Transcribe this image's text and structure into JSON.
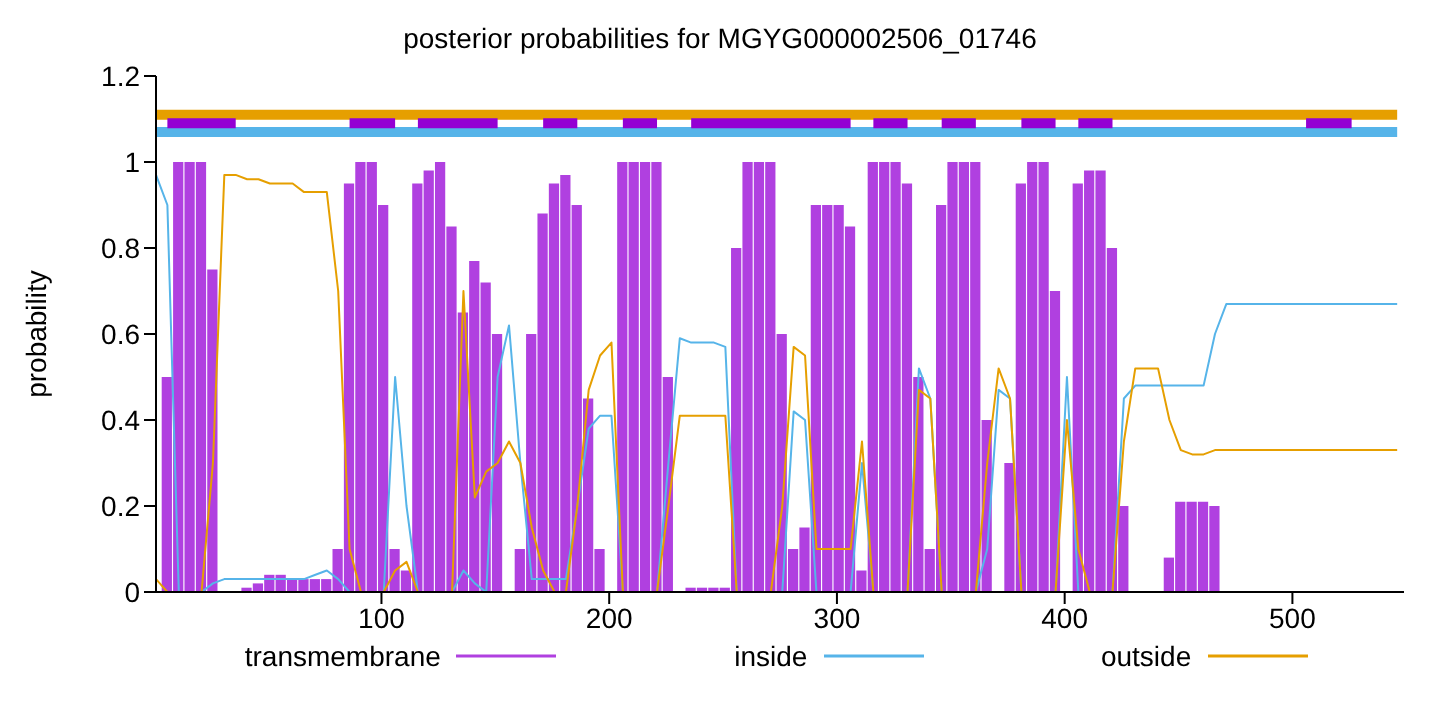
{
  "chart_data": {
    "type": "bar",
    "title": "posterior probabilities for MGYG000002506_01746",
    "ylabel": "probability",
    "xlim": [
      1,
      549
    ],
    "xticks": [
      100,
      200,
      300,
      400,
      500
    ],
    "ylim": [
      0,
      1.2
    ],
    "yticks": [
      0,
      0.2,
      0.4,
      0.6,
      0.8,
      1,
      1.2
    ],
    "grid": false,
    "legend": "bottom",
    "x": [
      1,
      6,
      11,
      16,
      21,
      26,
      31,
      36,
      41,
      46,
      51,
      56,
      61,
      66,
      71,
      76,
      81,
      86,
      91,
      96,
      101,
      106,
      111,
      116,
      121,
      126,
      131,
      136,
      141,
      146,
      151,
      156,
      161,
      166,
      171,
      176,
      181,
      186,
      191,
      196,
      201,
      206,
      211,
      216,
      221,
      226,
      231,
      236,
      241,
      246,
      251,
      256,
      261,
      266,
      271,
      276,
      281,
      286,
      291,
      296,
      301,
      306,
      311,
      316,
      321,
      326,
      331,
      336,
      341,
      346,
      351,
      356,
      361,
      366,
      371,
      376,
      381,
      386,
      391,
      396,
      401,
      406,
      411,
      416,
      421,
      426,
      431,
      436,
      441,
      446,
      451,
      456,
      461,
      466,
      471,
      476,
      481,
      486,
      491,
      496,
      501,
      506,
      511,
      516,
      521,
      526,
      531,
      536,
      541,
      546
    ],
    "series": [
      {
        "name": "transmembrane",
        "color": "#b040e0",
        "values": [
          0,
          0.5,
          1,
          1,
          1,
          0.75,
          0,
          0,
          0.01,
          0.02,
          0.04,
          0.04,
          0.03,
          0.03,
          0.03,
          0.03,
          0.1,
          0.95,
          1,
          1,
          0.9,
          0.1,
          0.05,
          0.95,
          0.98,
          1,
          0.85,
          0.65,
          0.77,
          0.72,
          0.6,
          0,
          0.1,
          0.6,
          0.88,
          0.95,
          0.97,
          0.9,
          0.45,
          0.1,
          0,
          1,
          1,
          1,
          1,
          0.5,
          0,
          0.01,
          0.01,
          0.01,
          0.01,
          0.8,
          1,
          1,
          1,
          0.6,
          0.1,
          0.15,
          0.9,
          0.9,
          0.9,
          0.85,
          0.05,
          1,
          1,
          1,
          0.95,
          0.5,
          0.1,
          0.9,
          1,
          1,
          1,
          0.4,
          0,
          0.3,
          0.95,
          1,
          1,
          0.7,
          0,
          0.95,
          0.98,
          0.98,
          0.8,
          0.2,
          0,
          0,
          0,
          0.08,
          0.21,
          0.21,
          0.21,
          0.2,
          0,
          0,
          0,
          0,
          0,
          0,
          0,
          0,
          0,
          0,
          0,
          0,
          0,
          0,
          0,
          0
        ]
      },
      {
        "name": "inside",
        "type": "line",
        "color": "#56b4e9",
        "values": [
          0.97,
          0.9,
          0,
          0,
          0,
          0.02,
          0.03,
          0.03,
          0.03,
          0.03,
          0.03,
          0.03,
          0.03,
          0.03,
          0.04,
          0.05,
          0.03,
          0,
          0,
          0,
          0,
          0.5,
          0.2,
          0,
          0,
          0,
          0,
          0.05,
          0.02,
          0,
          0.5,
          0.62,
          0.3,
          0.03,
          0.03,
          0.03,
          0.03,
          0.2,
          0.38,
          0.41,
          0.41,
          0,
          0,
          0,
          0,
          0.3,
          0.59,
          0.58,
          0.58,
          0.58,
          0.57,
          0,
          0,
          0,
          0,
          0,
          0.42,
          0.4,
          0,
          0,
          0,
          0,
          0.3,
          0,
          0,
          0,
          0,
          0.52,
          0.45,
          0,
          0,
          0,
          0,
          0.1,
          0.47,
          0.45,
          0,
          0,
          0,
          0,
          0.5,
          0,
          0,
          0,
          0,
          0.45,
          0.48,
          0.48,
          0.48,
          0.48,
          0.48,
          0.48,
          0.48,
          0.6,
          0.67,
          0.67,
          0.67,
          0.67,
          0.67,
          0.67,
          0.67,
          0.67,
          0.67,
          0.67,
          0.67,
          0.67,
          0.67,
          0.67,
          0.67,
          0.67
        ]
      },
      {
        "name": "outside",
        "type": "line",
        "color": "#e69f00",
        "values": [
          0.03,
          0,
          0,
          0,
          0,
          0.3,
          0.97,
          0.97,
          0.96,
          0.96,
          0.95,
          0.95,
          0.95,
          0.93,
          0.93,
          0.93,
          0.7,
          0.1,
          0,
          0,
          0,
          0.05,
          0.07,
          0,
          0,
          0,
          0,
          0.7,
          0.22,
          0.28,
          0.3,
          0.35,
          0.3,
          0.15,
          0.05,
          0,
          0,
          0.2,
          0.47,
          0.55,
          0.58,
          0,
          0,
          0,
          0,
          0.2,
          0.41,
          0.41,
          0.41,
          0.41,
          0.41,
          0,
          0,
          0,
          0,
          0.2,
          0.57,
          0.55,
          0.1,
          0.1,
          0.1,
          0.1,
          0.35,
          0,
          0,
          0,
          0,
          0.47,
          0.45,
          0,
          0,
          0,
          0,
          0.3,
          0.52,
          0.45,
          0,
          0,
          0,
          0,
          0.4,
          0.1,
          0,
          0,
          0,
          0.35,
          0.52,
          0.52,
          0.52,
          0.4,
          0.33,
          0.32,
          0.32,
          0.33,
          0.33,
          0.33,
          0.33,
          0.33,
          0.33,
          0.33,
          0.33,
          0.33,
          0.33,
          0.33,
          0.33,
          0.33,
          0.33,
          0.33,
          0.33,
          0.33
        ]
      },
      {
        "type": "line",
        "color": "#e69f00",
        "values": [
          1.11,
          1.11,
          1.11,
          1.11,
          1.11,
          1.11,
          1.11,
          1.11,
          1.11,
          1.11,
          1.11,
          1.11,
          1.11,
          1.11,
          1.11,
          1.11,
          1.11,
          1.11,
          1.11,
          1.11,
          1.11,
          1.11,
          1.11,
          1.11,
          1.11,
          1.11,
          1.11,
          1.11,
          1.11,
          1.11,
          1.11,
          1.11,
          1.11,
          1.11,
          1.11,
          1.11,
          1.11,
          1.11,
          1.11,
          1.11,
          1.11,
          1.11,
          1.11,
          1.11,
          1.11,
          1.11,
          1.11,
          1.11,
          1.11,
          1.11,
          1.11,
          1.11,
          1.11,
          1.11,
          1.11,
          1.11,
          1.11,
          1.11,
          1.11,
          1.11,
          1.11,
          1.11,
          1.11,
          1.11,
          1.11,
          1.11,
          1.11,
          1.11,
          1.11,
          1.11,
          1.11,
          1.11,
          1.11,
          1.11,
          1.11,
          1.11,
          1.11,
          1.11,
          1.11,
          1.11,
          1.11,
          1.11,
          1.11,
          1.11,
          1.11,
          1.11,
          1.11,
          1.11,
          1.11,
          1.11,
          1.11,
          1.11,
          1.11,
          1.11,
          1.11,
          1.11,
          1.11,
          1.11,
          1.11,
          1.11,
          1.11,
          1.11,
          1.11,
          1.11,
          1.11,
          1.11,
          1.11,
          1.11,
          1.11,
          1.11
        ]
      },
      {
        "type": "line",
        "color": "#56b4e9",
        "values": [
          1.07,
          1.07,
          1.07,
          1.07,
          1.07,
          1.07,
          1.07,
          1.07,
          1.07,
          1.07,
          1.07,
          1.07,
          1.07,
          1.07,
          1.07,
          1.07,
          1.07,
          1.07,
          1.07,
          1.07,
          1.07,
          1.07,
          1.07,
          1.07,
          1.07,
          1.07,
          1.07,
          1.07,
          1.07,
          1.07,
          1.07,
          1.07,
          1.07,
          1.07,
          1.07,
          1.07,
          1.07,
          1.07,
          1.07,
          1.07,
          1.07,
          1.07,
          1.07,
          1.07,
          1.07,
          1.07,
          1.07,
          1.07,
          1.07,
          1.07,
          1.07,
          1.07,
          1.07,
          1.07,
          1.07,
          1.07,
          1.07,
          1.07,
          1.07,
          1.07,
          1.07,
          1.07,
          1.07,
          1.07,
          1.07,
          1.07,
          1.07,
          1.07,
          1.07,
          1.07,
          1.07,
          1.07,
          1.07,
          1.07,
          1.07,
          1.07,
          1.07,
          1.07,
          1.07,
          1.07,
          1.07,
          1.07,
          1.07,
          1.07,
          1.07,
          1.07,
          1.07,
          1.07,
          1.07,
          1.07,
          1.07,
          1.07,
          1.07,
          1.07,
          1.07,
          1.07,
          1.07,
          1.07,
          1.07,
          1.07,
          1.07,
          1.07,
          1.07,
          1.07,
          1.07,
          1.07,
          1.07,
          1.07,
          1.07,
          1.07
        ]
      },
      {
        "type": "line",
        "color": "#9400d3",
        "values": [
          null,
          1.09,
          1.09,
          1.09,
          1.09,
          1.09,
          1.09,
          1.09,
          null,
          null,
          null,
          null,
          null,
          null,
          null,
          null,
          null,
          1.09,
          1.09,
          1.09,
          1.09,
          1.09,
          null,
          1.09,
          1.09,
          1.09,
          1.09,
          1.09,
          1.09,
          1.09,
          1.09,
          null,
          null,
          null,
          1.09,
          1.09,
          1.09,
          1.09,
          null,
          null,
          null,
          1.09,
          1.09,
          1.09,
          1.09,
          null,
          null,
          1.09,
          1.09,
          1.09,
          1.09,
          1.09,
          1.09,
          1.09,
          1.09,
          1.09,
          1.09,
          1.09,
          1.09,
          1.09,
          1.09,
          1.09,
          null,
          1.09,
          1.09,
          1.09,
          1.09,
          null,
          null,
          1.09,
          1.09,
          1.09,
          1.09,
          null,
          null,
          null,
          1.09,
          1.09,
          1.09,
          1.09,
          null,
          1.09,
          1.09,
          1.09,
          1.09,
          null,
          null,
          null,
          null,
          null,
          null,
          null,
          null,
          null,
          null,
          null,
          null,
          null,
          null,
          null,
          null,
          1.09,
          1.09,
          1.09,
          1.09,
          1.09,
          null,
          null,
          null,
          null
        ]
      }
    ]
  }
}
